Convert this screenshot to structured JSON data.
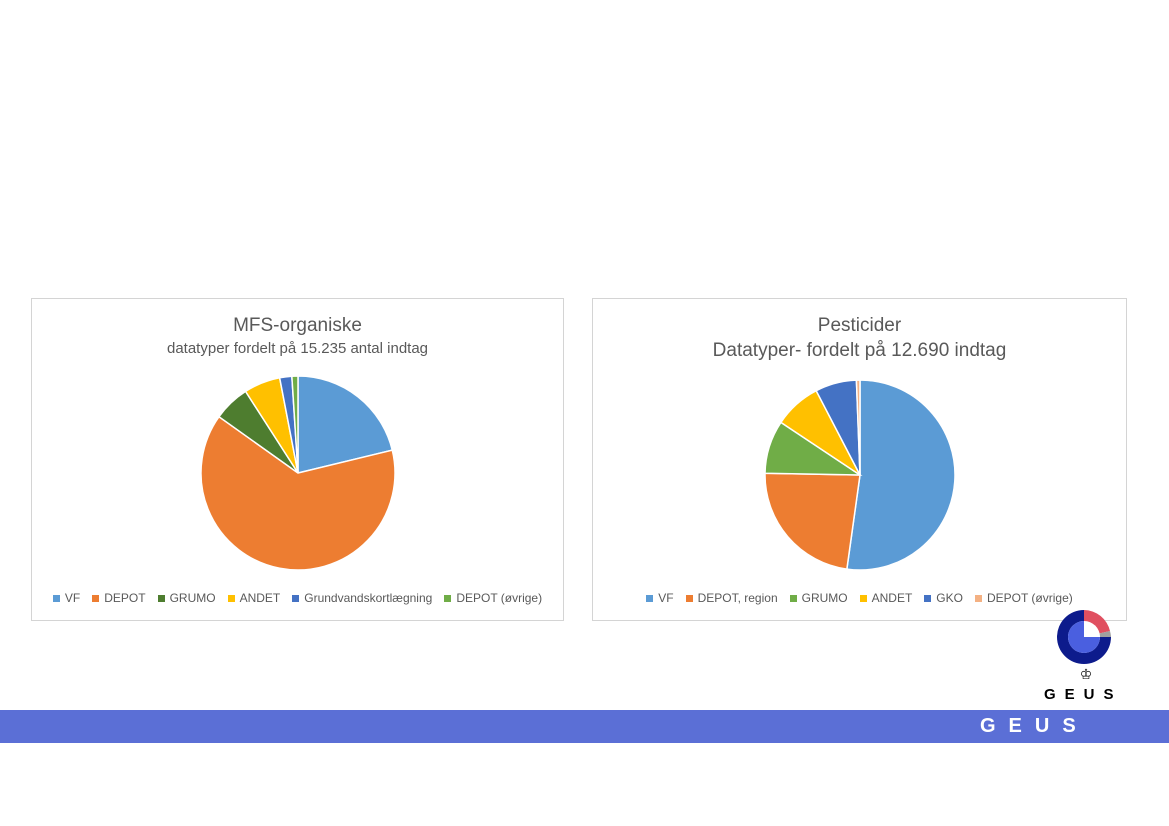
{
  "chart_data": [
    {
      "type": "pie",
      "title": "MFS-organiske",
      "subtitle": "datatyper fordelt på 15.235 antal indtag",
      "legend_position": "bottom",
      "categories": [
        "VF",
        "DEPOT",
        "GRUMO",
        "ANDET",
        "Grundvandskortlægning",
        "DEPOT (øvrige)"
      ],
      "values": [
        21,
        63,
        6,
        6,
        2,
        1
      ],
      "colors": [
        "#5b9bd5",
        "#ed7d31",
        "#4e7d2f",
        "#ffc000",
        "#4472c4",
        "#70ad47"
      ]
    },
    {
      "type": "pie",
      "title": "Pesticider",
      "subtitle": "Datatyper- fordelt på 12.690 indtag",
      "legend_position": "bottom",
      "categories": [
        "VF",
        "DEPOT, region",
        "GRUMO",
        "ANDET",
        "GKO",
        "DEPOT (øvrige)"
      ],
      "values": [
        52,
        23,
        9,
        8,
        7,
        0.6
      ],
      "colors": [
        "#5b9bd5",
        "#ed7d31",
        "#70ad47",
        "#ffc000",
        "#4472c4",
        "#f4b183"
      ]
    }
  ],
  "logo": {
    "text": "GEUS",
    "crown": "♔"
  },
  "footer": {
    "text": "GEUS",
    "bar_color": "#5b6fd6"
  }
}
